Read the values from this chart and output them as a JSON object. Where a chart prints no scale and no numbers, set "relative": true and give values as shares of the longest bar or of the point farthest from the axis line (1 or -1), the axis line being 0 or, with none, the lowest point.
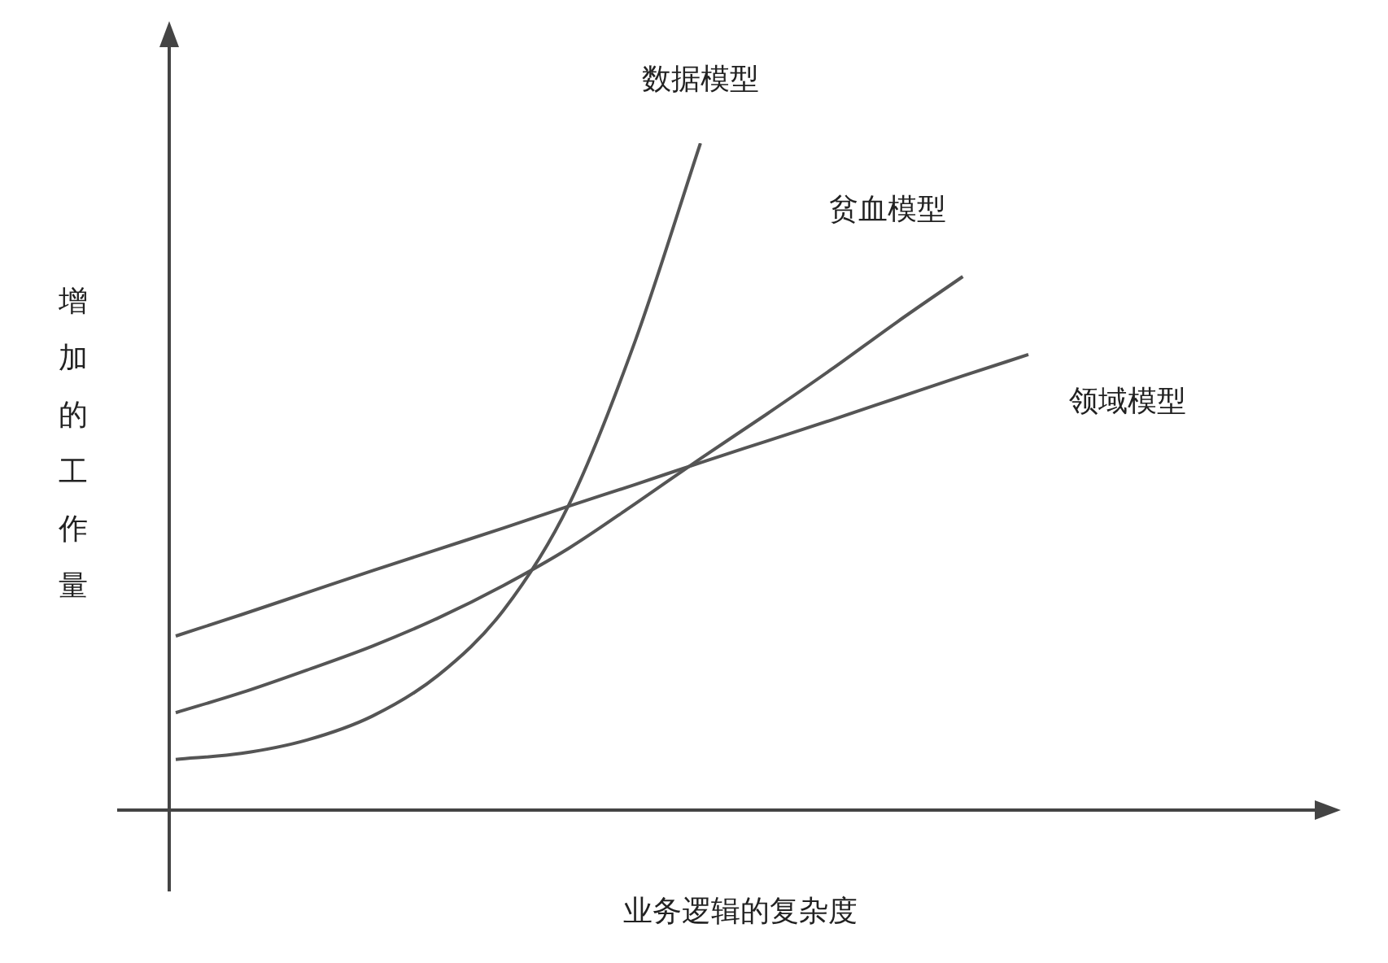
{
  "chart_data": {
    "type": "line",
    "xlabel": "业务逻辑的复杂度",
    "ylabel": "增加的工作量",
    "relative": true,
    "legend": false,
    "marker": "none",
    "categories": [
      null,
      null,
      null,
      null,
      null,
      null,
      null,
      null,
      null,
      null,
      null,
      null,
      null,
      null
    ],
    "series": [
      {
        "name": "数据模型",
        "color": "#555555",
        "values": [
          0.076,
          0.085,
          0.105,
          0.141,
          0.202,
          0.3,
          0.459,
          0.702,
          1,
          null,
          null,
          null,
          null,
          null
        ]
      },
      {
        "name": "贫血模型",
        "color": "#555555",
        "values": [
          0.146,
          0.176,
          0.21,
          0.246,
          0.288,
          0.337,
          0.393,
          0.459,
          0.527,
          0.593,
          0.661,
          0.732,
          0.8,
          null
        ]
      },
      {
        "name": "领域模型",
        "color": "#555555",
        "values": [
          0.261,
          0.293,
          0.326,
          0.359,
          0.391,
          0.423,
          0.456,
          0.488,
          0.521,
          0.553,
          0.585,
          0.618,
          0.651,
          0.683
        ]
      }
    ]
  }
}
